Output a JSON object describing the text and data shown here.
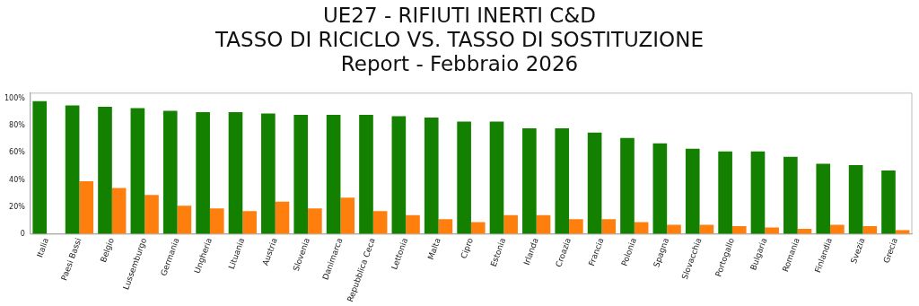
{
  "chart_data": {
    "type": "bar",
    "title": "UE27 - RIFIUTI INERTI C&D\nTASSO DI RICICLO VS. TASSO DI SOSTITUZIONE\nReport - Febbraio 2026",
    "categories": [
      "Italia",
      "Paesi Bassi",
      "Belgio",
      "Lussemburgo",
      "Germania",
      "Ungheria",
      "Lituania",
      "Austria",
      "Slovenia",
      "Danimarca",
      "Repubblica Ceca",
      "Lettonia",
      "Malta",
      "Cipro",
      "Estonia",
      "Irlanda",
      "Croazia",
      "Francia",
      "Polonia",
      "Spagna",
      "Slovacchia",
      "Portogallo",
      "Bulgaria",
      "Romania",
      "Finlandia",
      "Svezia",
      "Grecia"
    ],
    "series": [
      {
        "color": "#138000",
        "values": [
          98,
          95,
          94,
          93,
          91,
          90,
          90,
          89,
          88,
          88,
          88,
          87,
          86,
          83,
          83,
          78,
          78,
          75,
          71,
          67,
          63,
          61,
          61,
          57,
          52,
          51,
          47
        ]
      },
      {
        "color": "#ff7f0e",
        "values": [
          0,
          39,
          34,
          29,
          21,
          19,
          17,
          24,
          19,
          27,
          17,
          14,
          11,
          9,
          14,
          14,
          11,
          11,
          9,
          7,
          7,
          6,
          5,
          4,
          7,
          6,
          3
        ]
      }
    ],
    "ylim": [
      0,
      104
    ],
    "yticks": [
      0,
      {
        "value": 20,
        "label": "20%"
      },
      {
        "value": 40,
        "label": "40%"
      },
      {
        "value": 60,
        "label": "60%"
      },
      {
        "value": 80,
        "label": "80%"
      },
      {
        "value": 100,
        "label": "100%"
      }
    ],
    "grid": false,
    "legend": false
  }
}
